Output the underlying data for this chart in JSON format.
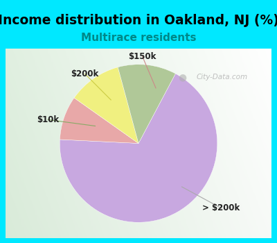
{
  "title": "Income distribution in Oakland, NJ (%)",
  "subtitle": "Multirace residents",
  "subtitle_color": "#008888",
  "title_fontsize": 13.5,
  "subtitle_fontsize": 11,
  "slices": [
    {
      "label": "> $200k",
      "value": 68,
      "color": "#c8a8e0"
    },
    {
      "label": "$150k",
      "value": 9,
      "color": "#e8a8a8"
    },
    {
      "label": "$200k",
      "value": 11,
      "color": "#f0f080"
    },
    {
      "label": "$10k",
      "value": 12,
      "color": "#b0c898"
    }
  ],
  "bg_top": "#00e8ff",
  "watermark": "City-Data.com",
  "label_fontsize": 8.5,
  "startangle": 62
}
